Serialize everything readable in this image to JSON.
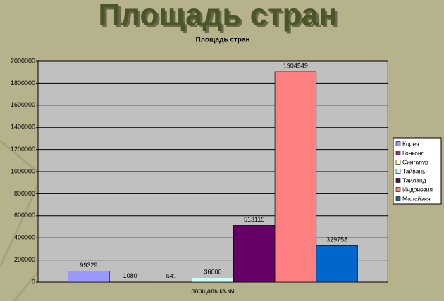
{
  "slide_title": "Площадь стран",
  "chart_data": {
    "type": "bar",
    "title": "Площадь стран",
    "x_label": "площадь кв.км",
    "series": [
      {
        "name": "Корея",
        "color": "#9999ff",
        "values": [
          99329
        ]
      },
      {
        "name": "Гонконг",
        "color": "#993366",
        "values": [
          1080
        ]
      },
      {
        "name": "Сингапур",
        "color": "#ffffcc",
        "values": [
          641
        ]
      },
      {
        "name": "Тайвань",
        "color": "#ccffff",
        "values": [
          36000
        ]
      },
      {
        "name": "Таиланд",
        "color": "#660066",
        "values": [
          513115
        ]
      },
      {
        "name": "Индонезия",
        "color": "#ff8080",
        "values": [
          1904549
        ]
      },
      {
        "name": "Малайзия",
        "color": "#0066cc",
        "values": [
          329758
        ]
      }
    ],
    "ylim": [
      0,
      2000000
    ],
    "yticks": [
      0,
      200000,
      400000,
      600000,
      800000,
      1000000,
      1200000,
      1400000,
      1600000,
      1800000,
      2000000
    ],
    "grid": true,
    "legend": "right"
  }
}
